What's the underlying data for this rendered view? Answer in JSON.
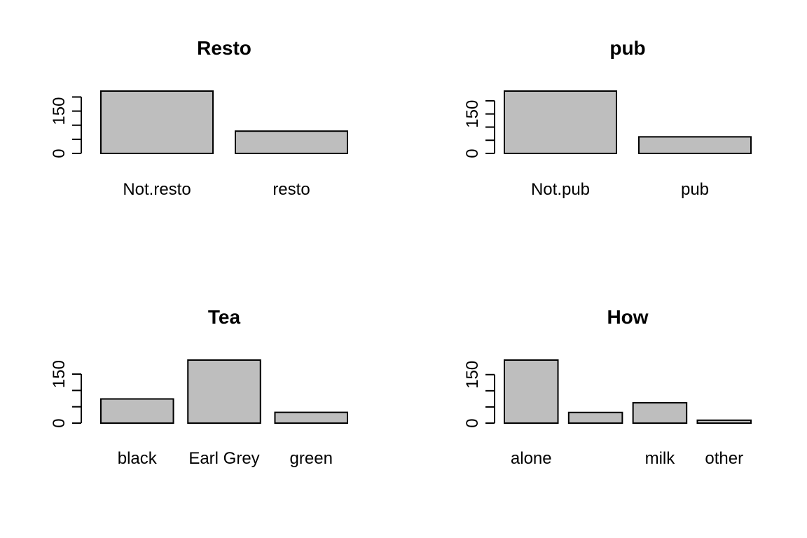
{
  "chart_data": [
    {
      "type": "bar",
      "title": "Resto",
      "categories": [
        "Not.resto",
        "resto"
      ],
      "values": [
        221,
        79
      ],
      "ylim": [
        0,
        221
      ],
      "ytick_labels": [
        "0",
        "150"
      ],
      "bar_color": "#bebebe",
      "grid": false
    },
    {
      "type": "bar",
      "title": "pub",
      "categories": [
        "Not.pub",
        "pub"
      ],
      "values": [
        237,
        63
      ],
      "ylim": [
        0,
        237
      ],
      "ytick_labels": [
        "0",
        "150"
      ],
      "bar_color": "#bebebe",
      "grid": false
    },
    {
      "type": "bar",
      "title": "Tea",
      "categories": [
        "black",
        "Earl Grey",
        "green"
      ],
      "values": [
        74,
        193,
        33
      ],
      "ylim": [
        0,
        193
      ],
      "ytick_labels": [
        "0",
        "150"
      ],
      "bar_color": "#bebebe",
      "grid": false
    },
    {
      "type": "bar",
      "title": "How",
      "categories": [
        "alone",
        "",
        "milk",
        "other"
      ],
      "values": [
        195,
        33,
        63,
        9
      ],
      "ylim": [
        0,
        195
      ],
      "ytick_labels": [
        "0",
        "150"
      ],
      "bar_color": "#bebebe",
      "grid": false
    }
  ]
}
